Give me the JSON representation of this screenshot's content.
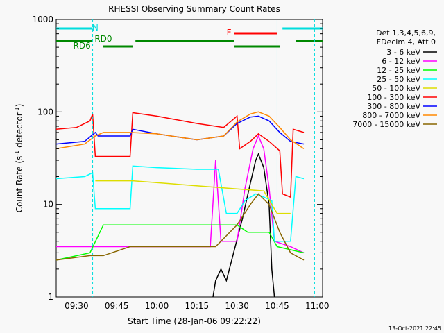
{
  "chart_data": {
    "type": "line",
    "title": "RHESSI Observing Summary Count Rates",
    "xlabel": "Start Time (28-Jan-06 09:22:22)",
    "ylabel_main": "Count Rate (s",
    "ylabel_sup1": "-1",
    "ylabel_mid": " detector",
    "ylabel_sup2": "-1",
    "ylabel_end": ")",
    "y_scale": "log",
    "ylim": [
      1,
      1000
    ],
    "xlim": [
      "09:22:22",
      "11:02:00"
    ],
    "x_tick_labels": [
      "09:30",
      "09:45",
      "10:00",
      "10:15",
      "10:30",
      "10:45",
      "11:00"
    ],
    "x_tick_values": [
      "09:30",
      "09:45",
      "10:00",
      "10:15",
      "10:30",
      "10:45",
      "11:00"
    ],
    "y_tick_labels": [
      "1",
      "10",
      "100",
      "1000"
    ],
    "timestamp": "13-Oct-2021 22:45",
    "legend_header": [
      "Det 1,3,4,5,6,9,",
      "FDecim 4, Att 0"
    ],
    "series": [
      {
        "name": "3 - 6 keV",
        "color": "#000000",
        "points": [
          [
            "10:21",
            1.0
          ],
          [
            "10:22",
            1.5
          ],
          [
            "10:24",
            2.0
          ],
          [
            "10:26",
            1.5
          ],
          [
            "10:28",
            2.5
          ],
          [
            "10:32",
            7
          ],
          [
            "10:35",
            17
          ],
          [
            "10:37",
            30
          ],
          [
            "10:38",
            35
          ],
          [
            "10:40",
            25
          ],
          [
            "10:42",
            10
          ],
          [
            "10:43",
            2
          ],
          [
            "10:44",
            1.0
          ]
        ]
      },
      {
        "name": "6 - 12 keV",
        "color": "#ff00ff",
        "points": [
          [
            "09:22:22",
            3.5
          ],
          [
            "09:40",
            3.5
          ],
          [
            "09:50",
            3.5
          ],
          [
            "10:10",
            3.5
          ],
          [
            "10:20",
            3.5
          ],
          [
            "10:22",
            30
          ],
          [
            "10:24",
            4
          ],
          [
            "10:30",
            4
          ],
          [
            "10:33",
            15
          ],
          [
            "10:36",
            40
          ],
          [
            "10:38",
            55
          ],
          [
            "10:40",
            40
          ],
          [
            "10:42",
            15
          ],
          [
            "10:44",
            4
          ],
          [
            "10:50",
            3.5
          ],
          [
            "10:55",
            3.0
          ]
        ]
      },
      {
        "name": "12 - 25 keV",
        "color": "#00ff00",
        "points": [
          [
            "09:22:22",
            2.5
          ],
          [
            "09:35",
            3.0
          ],
          [
            "09:40",
            6
          ],
          [
            "09:52",
            6
          ],
          [
            "10:10",
            6
          ],
          [
            "10:25",
            6
          ],
          [
            "10:30",
            6
          ],
          [
            "10:34",
            5
          ],
          [
            "10:38",
            5
          ],
          [
            "10:42",
            5
          ],
          [
            "10:45",
            3.5
          ],
          [
            "10:55",
            3.0
          ]
        ]
      },
      {
        "name": "25 - 50 keV",
        "color": "#00ffff",
        "points": [
          [
            "09:22:22",
            19
          ],
          [
            "09:33",
            20
          ],
          [
            "09:36",
            22
          ],
          [
            "09:37",
            9
          ],
          [
            "09:40",
            9
          ],
          [
            "09:50",
            9
          ],
          [
            "09:51",
            26
          ],
          [
            "10:00",
            25
          ],
          [
            "10:15",
            24
          ],
          [
            "10:23",
            24
          ],
          [
            "10:26",
            8
          ],
          [
            "10:30",
            8
          ],
          [
            "10:33",
            11
          ],
          [
            "10:37",
            13
          ],
          [
            "10:40",
            12
          ],
          [
            "10:43",
            11
          ],
          [
            "10:44",
            4
          ],
          [
            "10:50",
            4
          ],
          [
            "10:52",
            20
          ],
          [
            "10:55",
            19
          ]
        ]
      },
      {
        "name": "50 - 100 keV",
        "color": "#dddd00",
        "points": [
          [
            "09:37",
            18
          ],
          [
            "09:44",
            18
          ],
          [
            "09:51",
            18
          ],
          [
            "10:40",
            14
          ],
          [
            "10:45",
            8
          ],
          [
            "10:50",
            8
          ]
        ]
      },
      {
        "name": "100 - 300 keV",
        "color": "#ff0000",
        "points": [
          [
            "09:22:22",
            65
          ],
          [
            "09:30",
            68
          ],
          [
            "09:35",
            80
          ],
          [
            "09:36",
            95
          ],
          [
            "09:37",
            33
          ],
          [
            "09:50",
            33
          ],
          [
            "09:51",
            98
          ],
          [
            "10:00",
            90
          ],
          [
            "10:15",
            75
          ],
          [
            "10:25",
            68
          ],
          [
            "10:30",
            90
          ],
          [
            "10:31",
            40
          ],
          [
            "10:35",
            48
          ],
          [
            "10:38",
            58
          ],
          [
            "10:42",
            48
          ],
          [
            "10:46",
            38
          ],
          [
            "10:47",
            13
          ],
          [
            "10:50",
            12
          ],
          [
            "10:51",
            65
          ],
          [
            "10:55",
            60
          ]
        ]
      },
      {
        "name": "300 - 800 keV",
        "color": "#0000ff",
        "points": [
          [
            "09:22:22",
            45
          ],
          [
            "09:33",
            48
          ],
          [
            "09:37",
            60
          ],
          [
            "09:38",
            55
          ],
          [
            "09:50",
            55
          ],
          [
            "09:51",
            65
          ],
          [
            "10:00",
            58
          ],
          [
            "10:15",
            50
          ],
          [
            "10:25",
            55
          ],
          [
            "10:30",
            75
          ],
          [
            "10:35",
            88
          ],
          [
            "10:38",
            90
          ],
          [
            "10:42",
            80
          ],
          [
            "10:46",
            60
          ],
          [
            "10:50",
            48
          ],
          [
            "10:55",
            45
          ]
        ]
      },
      {
        "name": "800 - 7000 keV",
        "color": "#ff8800",
        "points": [
          [
            "09:22:22",
            40
          ],
          [
            "09:33",
            45
          ],
          [
            "09:37",
            55
          ],
          [
            "09:40",
            60
          ],
          [
            "09:50",
            60
          ],
          [
            "10:00",
            58
          ],
          [
            "10:15",
            50
          ],
          [
            "10:25",
            55
          ],
          [
            "10:30",
            78
          ],
          [
            "10:35",
            95
          ],
          [
            "10:38",
            100
          ],
          [
            "10:42",
            90
          ],
          [
            "10:46",
            68
          ],
          [
            "10:50",
            50
          ],
          [
            "10:55",
            40
          ]
        ]
      },
      {
        "name": "7000 - 15000 keV",
        "color": "#886600",
        "points": [
          [
            "09:22:22",
            2.5
          ],
          [
            "09:35",
            2.8
          ],
          [
            "09:40",
            2.8
          ],
          [
            "09:50",
            3.5
          ],
          [
            "10:00",
            3.5
          ],
          [
            "10:15",
            3.5
          ],
          [
            "10:22",
            3.5
          ],
          [
            "10:30",
            6
          ],
          [
            "10:35",
            10
          ],
          [
            "10:38",
            13
          ],
          [
            "10:42",
            10
          ],
          [
            "10:46",
            5
          ],
          [
            "10:50",
            3
          ],
          [
            "10:55",
            2.5
          ]
        ]
      }
    ],
    "flags": [
      {
        "label": "N",
        "color": "#00dddd",
        "segments": [
          [
            "09:22:22",
            "09:36"
          ],
          [
            "10:47",
            "11:02:00"
          ]
        ]
      },
      {
        "label": "F",
        "color": "#ff0000",
        "segments": [
          [
            "10:29",
            "10:45"
          ]
        ]
      },
      {
        "label": "RD0",
        "color": "#008800",
        "segments": [
          [
            "09:22:22",
            "09:36"
          ],
          [
            "09:52",
            "10:29"
          ],
          [
            "10:52",
            "11:02:00"
          ]
        ]
      },
      {
        "label": "RD6",
        "color": "#008800",
        "segments": [
          [
            "09:40",
            "09:51"
          ],
          [
            "10:29",
            "10:46"
          ]
        ]
      }
    ],
    "vertical_markers": [
      {
        "time": "09:36",
        "color": "#00dddd",
        "style": "dashed"
      },
      {
        "time": "10:45",
        "color": "#00dddd",
        "style": "solid"
      },
      {
        "time": "10:59",
        "color": "#00dddd",
        "style": "dashed"
      }
    ]
  }
}
